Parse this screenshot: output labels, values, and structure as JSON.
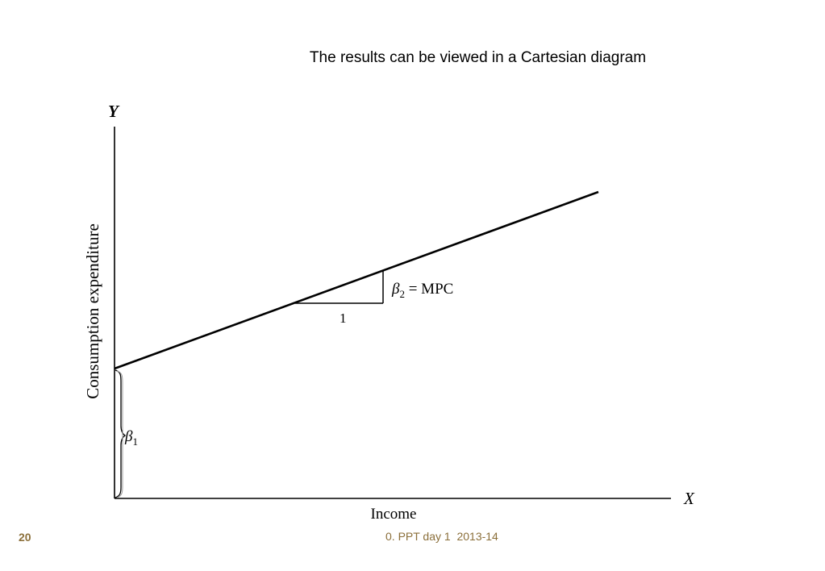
{
  "title": "The results can be viewed in a Cartesian diagram",
  "diagram": {
    "y_axis_label": "Y",
    "x_axis_label": "X",
    "y_title": "Consumption expenditure",
    "x_title": "Income",
    "slope_label_symbol": "β",
    "slope_label_subscript": "2",
    "slope_label_text": " = MPC",
    "run_label": "1",
    "intercept_symbol": "β",
    "intercept_subscript": "1"
  },
  "footer": {
    "page_number": "20",
    "text": "0. PPT day 1  2013-14",
    "color": "#8b6f3a"
  }
}
